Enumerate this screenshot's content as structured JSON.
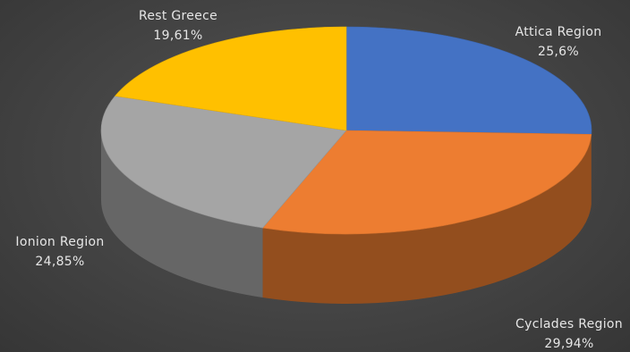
{
  "chart_data": {
    "type": "pie",
    "title": "",
    "style": "3d",
    "categories": [
      "Attica Region",
      "Cyclades Region",
      "Ionion Region",
      "Rest Greece"
    ],
    "values": [
      25.6,
      29.94,
      24.85,
      19.61
    ],
    "value_labels": [
      "25,6%",
      "29,94%",
      "24,85%",
      "19,61%"
    ],
    "colors": [
      "#4472C4",
      "#ED7D31",
      "#A5A5A5",
      "#FFC000"
    ],
    "start_angle": "12 o'clock",
    "direction": "clockwise",
    "legend": "none"
  }
}
